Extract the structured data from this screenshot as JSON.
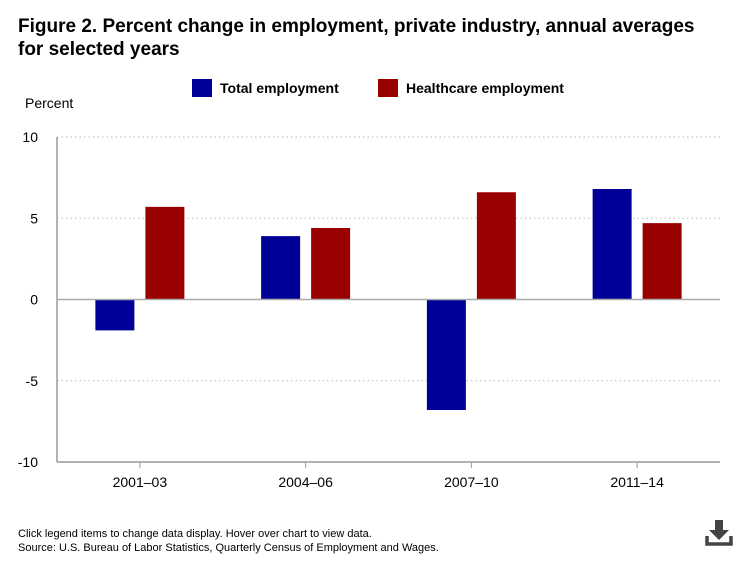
{
  "title": {
    "line1": "Figure 2. Percent change in employment, private industry, annual averages",
    "line2": "for selected years"
  },
  "legend": [
    {
      "label": "Total employment",
      "color": "#000099"
    },
    {
      "label": "Healthcare employment",
      "color": "#990000"
    }
  ],
  "footer": {
    "note": "Click legend items to change data display. Hover over chart to view data.",
    "source": "Source: U.S. Bureau of Labor Statistics, Quarterly Census of Employment and Wages."
  },
  "download_icon": "download-icon",
  "chart_data": {
    "type": "bar",
    "title": "Figure 2. Percent change in employment, private industry, annual averages for selected years",
    "xlabel": "",
    "ylabel": "Percent",
    "ylim": [
      -10,
      10
    ],
    "yticks": [
      10,
      5,
      0,
      -5,
      -10
    ],
    "grid": true,
    "legend_position": "top",
    "categories": [
      "2001–03",
      "2004–06",
      "2007–10",
      "2011–14"
    ],
    "series": [
      {
        "name": "Total employment",
        "color": "#000099",
        "values": [
          -1.9,
          3.9,
          -6.8,
          6.8
        ]
      },
      {
        "name": "Healthcare employment",
        "color": "#990000",
        "values": [
          5.7,
          4.4,
          6.6,
          4.7
        ]
      }
    ]
  }
}
